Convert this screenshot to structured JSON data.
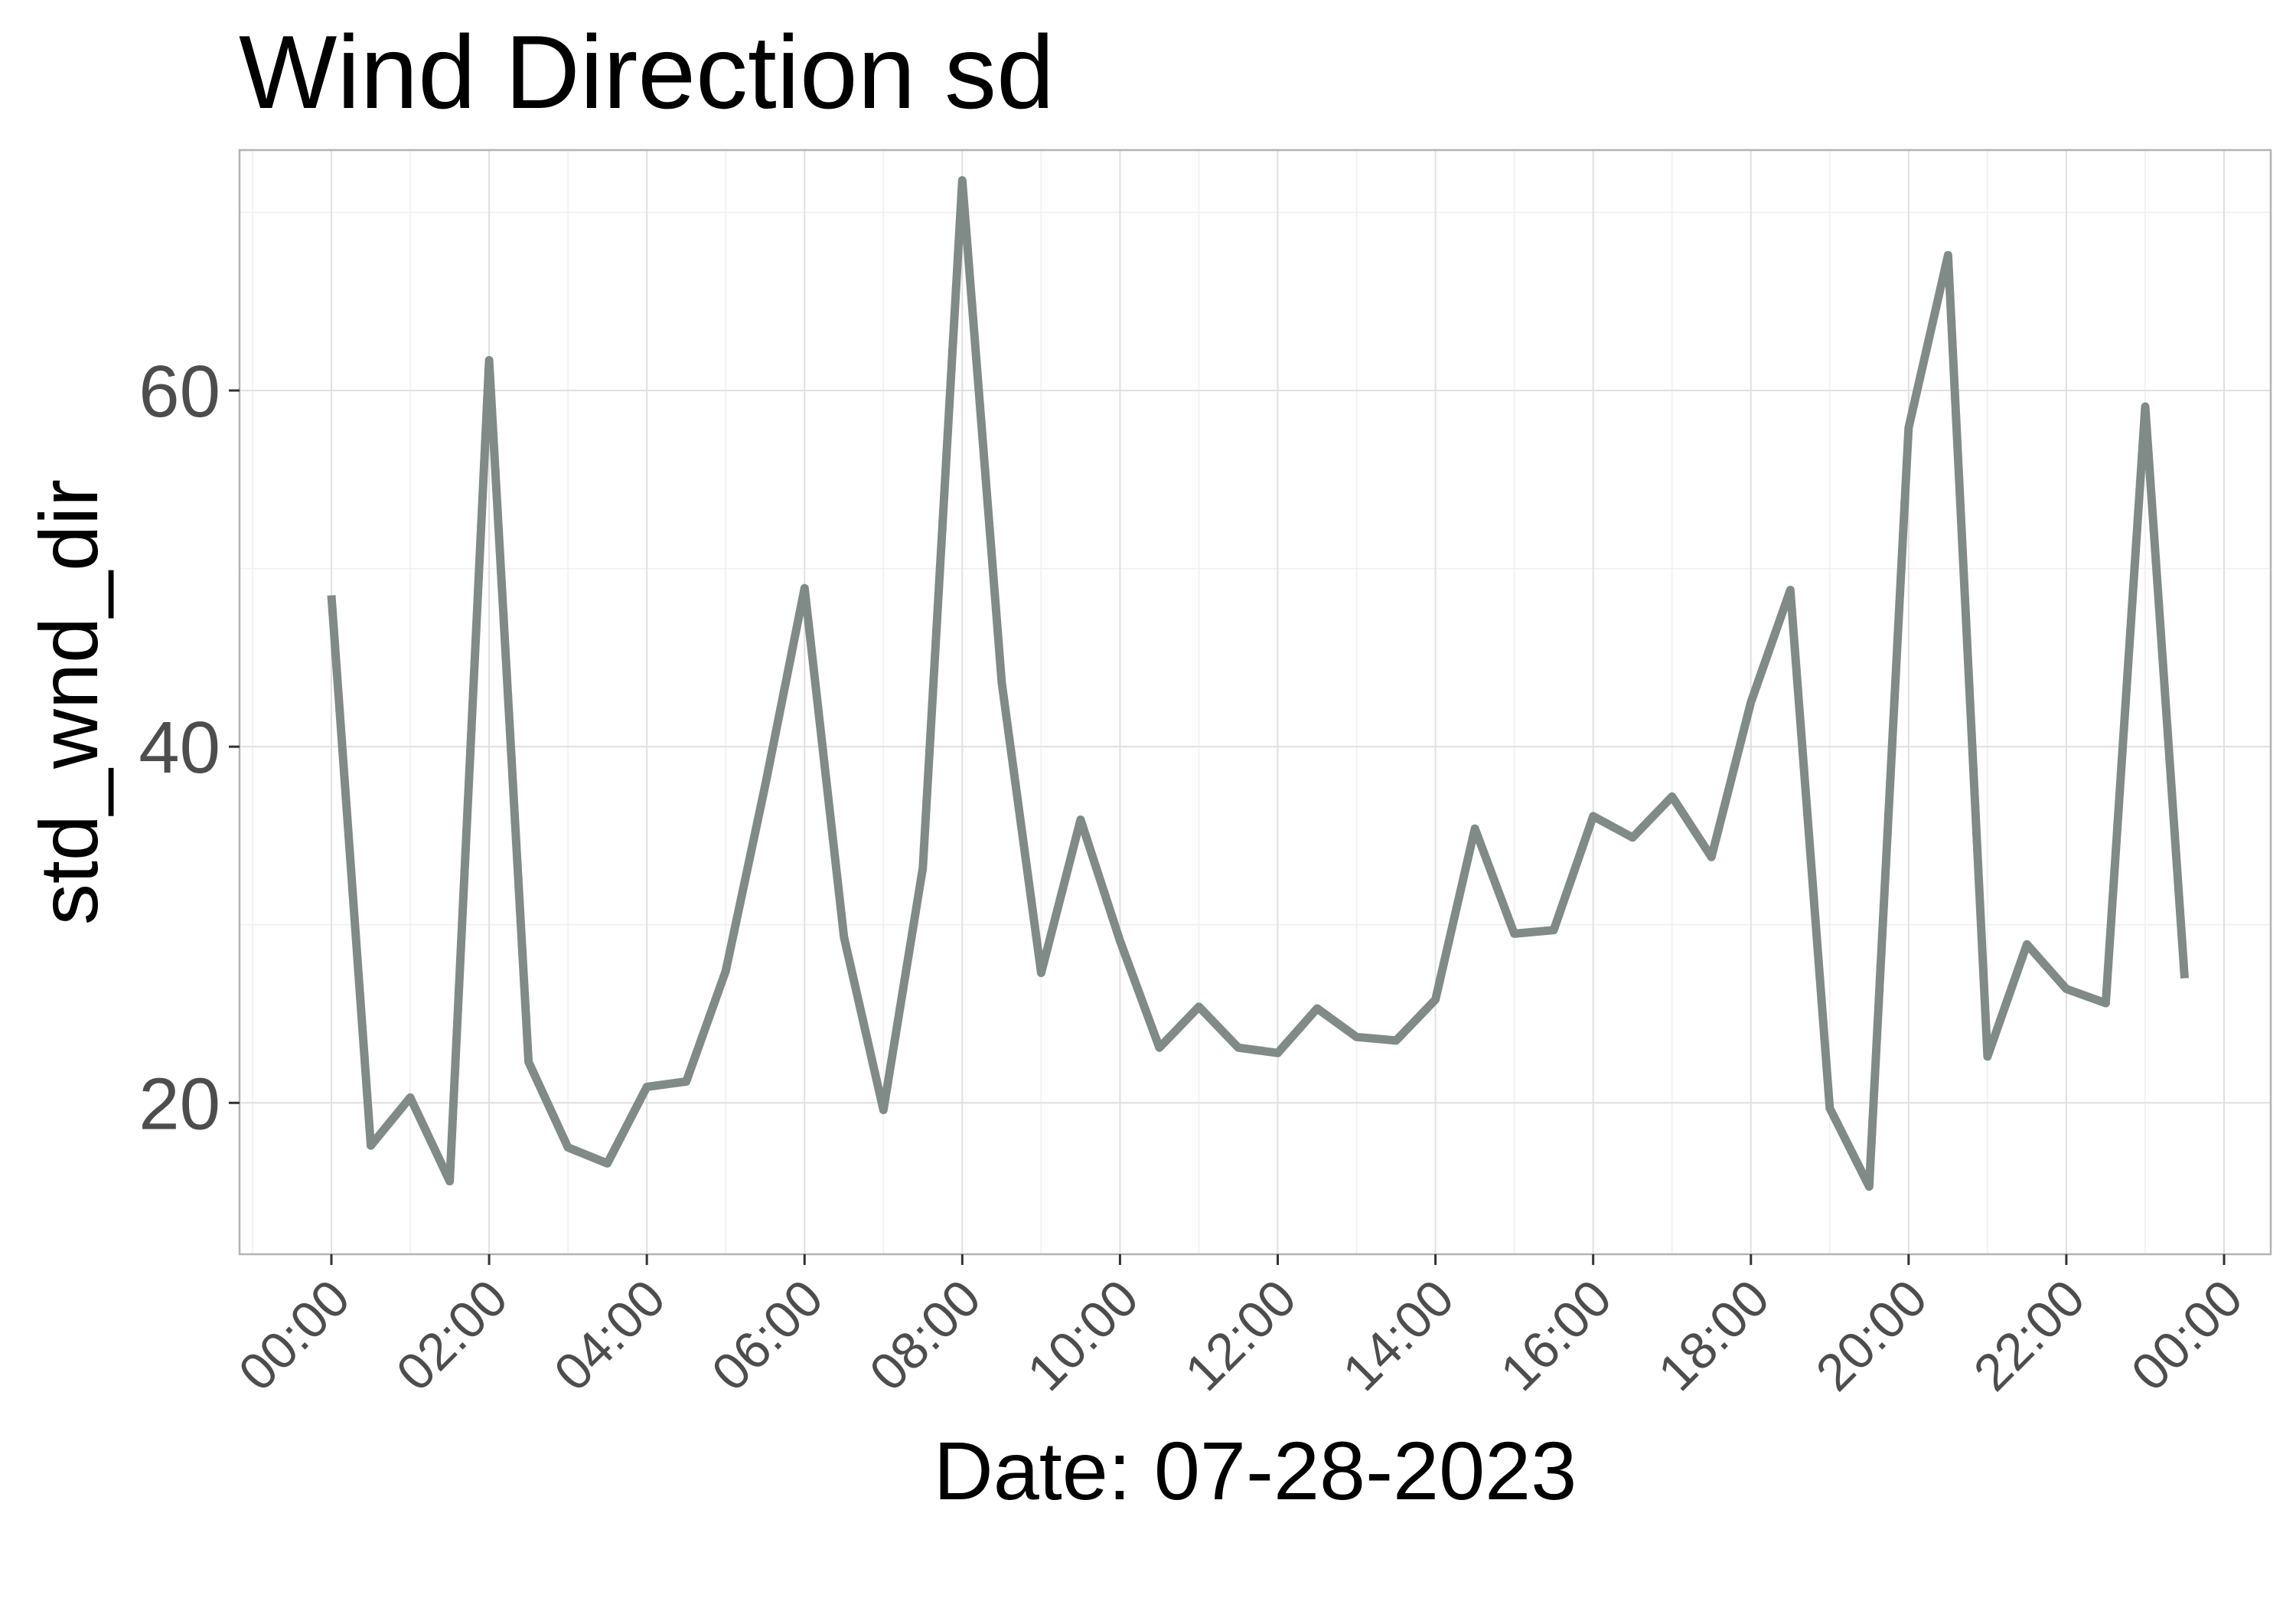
{
  "chart_data": {
    "type": "line",
    "title": "Wind Direction sd",
    "xlabel": "Date: 07-28-2023",
    "ylabel": "std_wnd_dir",
    "x_tick_labels": [
      "00:00",
      "02:00",
      "04:00",
      "06:00",
      "08:00",
      "10:00",
      "12:00",
      "14:00",
      "16:00",
      "18:00",
      "20:00",
      "22:00",
      "00:00"
    ],
    "y_ticks": [
      20,
      40,
      60
    ],
    "ylim": [
      11.5,
      73.5
    ],
    "grid": true,
    "line_color": "#808a87",
    "series": [
      {
        "x": [
          "00:00",
          "00:30",
          "01:00",
          "01:30",
          "02:00",
          "02:30",
          "03:00",
          "03:30",
          "04:00",
          "04:30",
          "05:00",
          "05:30",
          "06:00",
          "06:30",
          "07:00",
          "07:30",
          "08:00",
          "08:30",
          "09:00",
          "09:30",
          "10:00",
          "10:30",
          "11:00",
          "11:30",
          "12:00",
          "12:30",
          "13:00",
          "13:30",
          "14:00",
          "14:30",
          "15:00",
          "15:30",
          "16:00",
          "16:30",
          "17:00",
          "17:30",
          "18:00",
          "18:30",
          "19:00",
          "19:30",
          "20:00",
          "20:30",
          "21:00",
          "21:30",
          "22:00",
          "22:30",
          "23:00",
          "23:30"
        ],
        "values": [
          48.5,
          17.6,
          20.3,
          15.6,
          61.7,
          22.3,
          17.5,
          16.6,
          20.9,
          21.2,
          27.4,
          37.8,
          48.9,
          29.3,
          19.6,
          33.2,
          71.8,
          43.6,
          27.3,
          35.9,
          29.1,
          23.1,
          25.4,
          23.1,
          22.8,
          25.3,
          23.7,
          23.5,
          25.8,
          35.4,
          29.5,
          29.7,
          36.1,
          34.9,
          37.2,
          33.8,
          42.5,
          48.8,
          19.7,
          15.3,
          57.9,
          67.6,
          22.6,
          28.9,
          26.4,
          25.6,
          59.1,
          27.0
        ]
      }
    ]
  }
}
